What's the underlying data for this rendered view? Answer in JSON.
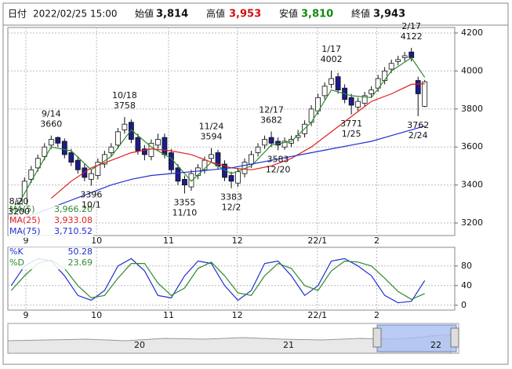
{
  "header": {
    "date_label": "日付",
    "datetime": "2022/02/25 15:00",
    "open_label": "始値",
    "open": "3,814",
    "high_label": "高値",
    "high": "3,953",
    "low_label": "安値",
    "low": "3,810",
    "close_label": "終値",
    "close": "3,943"
  },
  "navigator": {
    "labels": [
      "20",
      "21",
      "22"
    ]
  },
  "chart_data": [
    {
      "type": "candlestick",
      "open": [
        3220,
        3250,
        3290,
        3430,
        3490,
        3550,
        3610,
        3650,
        3630,
        3570,
        3530,
        3490,
        3430,
        3450,
        3510,
        3570,
        3610,
        3690,
        3730,
        3650,
        3590,
        3550,
        3610,
        3650,
        3570,
        3490,
        3430,
        3390,
        3450,
        3480,
        3540,
        3570,
        3510,
        3450,
        3410,
        3460,
        3510,
        3570,
        3610,
        3650,
        3630,
        3600,
        3620,
        3650,
        3670,
        3730,
        3790,
        3870,
        3930,
        3970,
        3910,
        3860,
        3810,
        3830,
        3880,
        3910,
        3950,
        4010,
        4050,
        4070,
        4100,
        3950,
        3814
      ],
      "high": [
        3260,
        3320,
        3440,
        3500,
        3560,
        3620,
        3660,
        3655,
        3645,
        3590,
        3550,
        3510,
        3480,
        3540,
        3580,
        3620,
        3700,
        3758,
        3745,
        3670,
        3610,
        3640,
        3670,
        3670,
        3590,
        3510,
        3450,
        3480,
        3510,
        3550,
        3594,
        3585,
        3530,
        3470,
        3490,
        3540,
        3580,
        3620,
        3660,
        3682,
        3650,
        3650,
        3660,
        3690,
        3740,
        3820,
        3880,
        3940,
        4002,
        3990,
        3930,
        3880,
        3860,
        3890,
        3920,
        3980,
        4020,
        4060,
        4080,
        4100,
        4122,
        3970,
        3953
      ],
      "low": [
        3200,
        3230,
        3270,
        3410,
        3470,
        3530,
        3590,
        3600,
        3540,
        3500,
        3460,
        3420,
        3396,
        3430,
        3490,
        3550,
        3590,
        3670,
        3620,
        3560,
        3530,
        3530,
        3590,
        3540,
        3460,
        3400,
        3355,
        3370,
        3430,
        3460,
        3520,
        3480,
        3420,
        3383,
        3390,
        3440,
        3490,
        3550,
        3590,
        3600,
        3583,
        3585,
        3600,
        3630,
        3650,
        3710,
        3770,
        3850,
        3910,
        3880,
        3830,
        3771,
        3790,
        3810,
        3860,
        3890,
        3930,
        3990,
        4030,
        4050,
        4050,
        3762,
        3810
      ],
      "close": [
        3240,
        3300,
        3420,
        3480,
        3540,
        3600,
        3640,
        3620,
        3560,
        3520,
        3480,
        3440,
        3460,
        3520,
        3560,
        3600,
        3680,
        3720,
        3640,
        3580,
        3560,
        3620,
        3640,
        3560,
        3480,
        3420,
        3400,
        3460,
        3490,
        3530,
        3560,
        3500,
        3440,
        3420,
        3470,
        3520,
        3560,
        3600,
        3640,
        3620,
        3610,
        3630,
        3640,
        3660,
        3720,
        3800,
        3860,
        3920,
        3960,
        3900,
        3850,
        3820,
        3840,
        3870,
        3900,
        3960,
        4000,
        4040,
        4060,
        4080,
        4070,
        3880,
        3943
      ],
      "up_color": "#ffffff",
      "down_color": "#1c1c8a",
      "series": [
        {
          "name": "MA(5)",
          "color": "#2e8b2e",
          "legend_value": {
            "value": 3966.2,
            "label": "3,966.20"
          },
          "x": [
            0,
            3,
            6,
            9,
            12,
            15,
            18,
            21,
            24,
            27,
            30,
            33,
            36,
            39,
            42,
            45,
            48,
            51,
            54,
            57,
            60,
            62
          ],
          "values": [
            3230,
            3420,
            3600,
            3580,
            3480,
            3550,
            3690,
            3600,
            3540,
            3420,
            3520,
            3460,
            3500,
            3610,
            3630,
            3730,
            3900,
            3870,
            3860,
            4000,
            4070,
            3966.2
          ]
        },
        {
          "name": "MA(25)",
          "color": "#e02020",
          "legend_value": {
            "value": 3933.08,
            "label": "3,933.08"
          },
          "x": [
            0,
            3,
            6,
            9,
            12,
            15,
            18,
            21,
            24,
            27,
            30,
            33,
            36,
            39,
            42,
            45,
            48,
            51,
            54,
            57,
            60,
            62
          ],
          "values": [
            null,
            null,
            3330,
            3420,
            3490,
            3530,
            3570,
            3590,
            3580,
            3560,
            3520,
            3490,
            3480,
            3500,
            3540,
            3600,
            3680,
            3760,
            3840,
            3880,
            3930,
            3933.08
          ]
        },
        {
          "name": "MA(75)",
          "color": "#2030d0",
          "legend_value": {
            "value": 3710.52,
            "label": "3,710.52"
          },
          "x": [
            0,
            3,
            6,
            9,
            12,
            15,
            18,
            21,
            24,
            27,
            30,
            33,
            36,
            39,
            42,
            45,
            48,
            51,
            54,
            57,
            60,
            62
          ],
          "values": [
            3200,
            3240,
            3280,
            3320,
            3360,
            3400,
            3430,
            3450,
            3460,
            3470,
            3480,
            3490,
            3510,
            3530,
            3550,
            3570,
            3590,
            3610,
            3630,
            3660,
            3690,
            3710.52
          ]
        }
      ],
      "annotations": [
        {
          "date": "8/20",
          "value": 3200,
          "x": 0
        },
        {
          "date": "9/14",
          "value": 3660,
          "x": 6
        },
        {
          "date": "10/1",
          "value": 3396,
          "x": 12
        },
        {
          "date": "10/18",
          "value": 3758,
          "x": 17
        },
        {
          "date": "11/10",
          "value": 3355,
          "x": 26
        },
        {
          "date": "11/24",
          "value": 3594,
          "x": 30
        },
        {
          "date": "12/2",
          "value": 3383,
          "x": 33
        },
        {
          "date": "12/17",
          "value": 3682,
          "x": 39
        },
        {
          "date": "12/20",
          "value": 3583,
          "x": 40
        },
        {
          "date": "1/17",
          "value": 4002,
          "x": 48
        },
        {
          "date": "1/25",
          "value": 3771,
          "x": 51
        },
        {
          "date": "2/17",
          "value": 4122,
          "x": 60
        },
        {
          "date": "2/24",
          "value": 3762,
          "x": 61
        }
      ],
      "xlim": [
        -0.5,
        66.5
      ],
      "xticks": [
        {
          "value": 2.2,
          "label": "9"
        },
        {
          "value": 12.8,
          "label": "10"
        },
        {
          "value": 23.6,
          "label": "11"
        },
        {
          "value": 33.9,
          "label": "12"
        },
        {
          "value": 45.9,
          "label": "22/1"
        },
        {
          "value": 54.8,
          "label": "2"
        }
      ],
      "ylim": [
        3134,
        4229
      ],
      "yticks": [
        3200,
        3400,
        3600,
        3800,
        4000,
        4200
      ],
      "grid": true
    },
    {
      "type": "line",
      "series": [
        {
          "name": "%K",
          "color": "#2030d0",
          "legend_value": {
            "value": 50.28,
            "label": "50.28"
          },
          "x": [
            0,
            2,
            4,
            6,
            8,
            10,
            12,
            14,
            16,
            18,
            20,
            22,
            24,
            26,
            28,
            30,
            32,
            34,
            36,
            38,
            40,
            42,
            44,
            46,
            48,
            50,
            52,
            54,
            56,
            58,
            60,
            62
          ],
          "values": [
            40,
            80,
            95,
            90,
            60,
            20,
            10,
            30,
            80,
            95,
            70,
            20,
            15,
            60,
            90,
            85,
            40,
            10,
            30,
            85,
            90,
            60,
            20,
            40,
            90,
            95,
            80,
            60,
            20,
            5,
            8,
            50.28
          ]
        },
        {
          "name": "%D",
          "color": "#2e8b2e",
          "legend_value": {
            "value": 23.69,
            "label": "23.69"
          },
          "x": [
            0,
            2,
            4,
            6,
            8,
            10,
            12,
            14,
            16,
            18,
            20,
            22,
            24,
            26,
            28,
            30,
            32,
            34,
            36,
            38,
            40,
            42,
            44,
            46,
            48,
            50,
            52,
            54,
            56,
            58,
            60,
            62
          ],
          "values": [
            30,
            60,
            85,
            92,
            75,
            40,
            15,
            20,
            55,
            85,
            85,
            45,
            20,
            35,
            75,
            88,
            60,
            25,
            20,
            60,
            85,
            75,
            40,
            30,
            70,
            90,
            88,
            80,
            55,
            28,
            12,
            23.69
          ]
        }
      ],
      "xlim": [
        -0.5,
        66.5
      ],
      "xticks": [
        {
          "value": 2.2,
          "label": "9"
        },
        {
          "value": 12.8,
          "label": "10"
        },
        {
          "value": 23.6,
          "label": "11"
        },
        {
          "value": 33.9,
          "label": "12"
        },
        {
          "value": 45.9,
          "label": "22/1"
        },
        {
          "value": 54.8,
          "label": "2"
        }
      ],
      "ylim": [
        -10,
        118
      ],
      "yticks": [
        0,
        40,
        80
      ],
      "grid": true
    }
  ]
}
